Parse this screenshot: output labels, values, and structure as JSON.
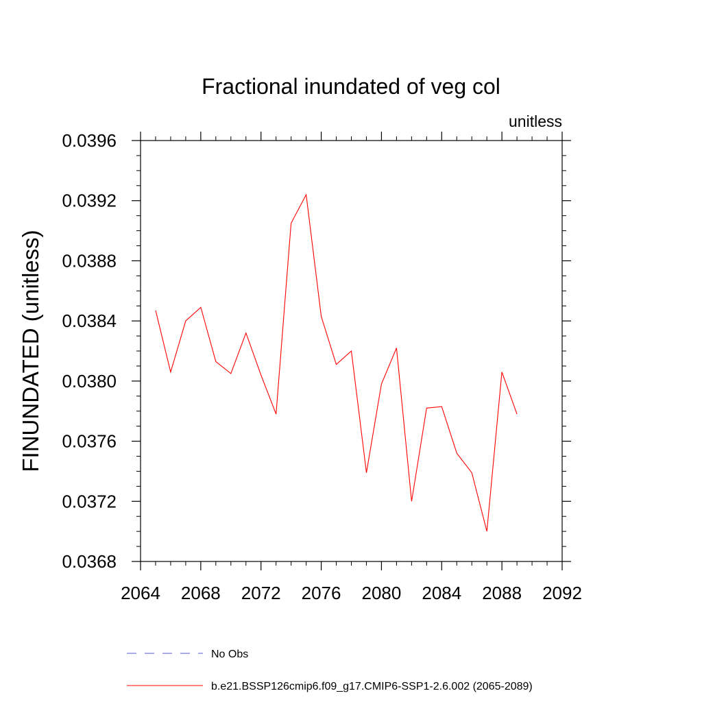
{
  "chart_data": {
    "type": "line",
    "title": "Fractional inundated of veg col",
    "units_label": "unitless",
    "xlabel": "",
    "ylabel": "FINUNDATED  (unitless)",
    "xlim": [
      2064,
      2092
    ],
    "ylim": [
      0.0368,
      0.0396
    ],
    "x_ticks": [
      2064,
      2068,
      2072,
      2076,
      2080,
      2084,
      2088,
      2092
    ],
    "x_tick_labels": [
      "2064",
      "2068",
      "2072",
      "2076",
      "2080",
      "2084",
      "2088",
      "2092"
    ],
    "y_ticks": [
      0.0368,
      0.0372,
      0.0376,
      0.038,
      0.0384,
      0.0388,
      0.0392,
      0.0396
    ],
    "y_tick_labels": [
      "0.0368",
      "0.0372",
      "0.0376",
      "0.0380",
      "0.0384",
      "0.0388",
      "0.0392",
      "0.0396"
    ],
    "grid": false,
    "legend_position": "bottom",
    "series": [
      {
        "name": "b.e21.BSSP126cmip6.f09_g17.CMIP6-SSP1-2.6.002 (2065-2089)",
        "color": "#ff0000",
        "style": "solid",
        "x": [
          2065,
          2066,
          2067,
          2068,
          2069,
          2070,
          2071,
          2072,
          2073,
          2074,
          2075,
          2076,
          2077,
          2078,
          2079,
          2080,
          2081,
          2082,
          2083,
          2084,
          2085,
          2086,
          2087,
          2088,
          2089
        ],
        "values": [
          0.03847,
          0.03806,
          0.0384,
          0.03849,
          0.03813,
          0.03805,
          0.03832,
          0.03804,
          0.03778,
          0.03905,
          0.03924,
          0.03843,
          0.03811,
          0.0382,
          0.03739,
          0.03798,
          0.03822,
          0.0372,
          0.03782,
          0.03783,
          0.03752,
          0.03739,
          0.037,
          0.03806,
          0.03778
        ]
      }
    ],
    "legend": [
      {
        "label": "No Obs",
        "color": "#5555cc",
        "style": "dashed"
      },
      {
        "label": "b.e21.BSSP126cmip6.f09_g17.CMIP6-SSP1-2.6.002 (2065-2089)",
        "color": "#ff0000",
        "style": "solid"
      }
    ]
  }
}
